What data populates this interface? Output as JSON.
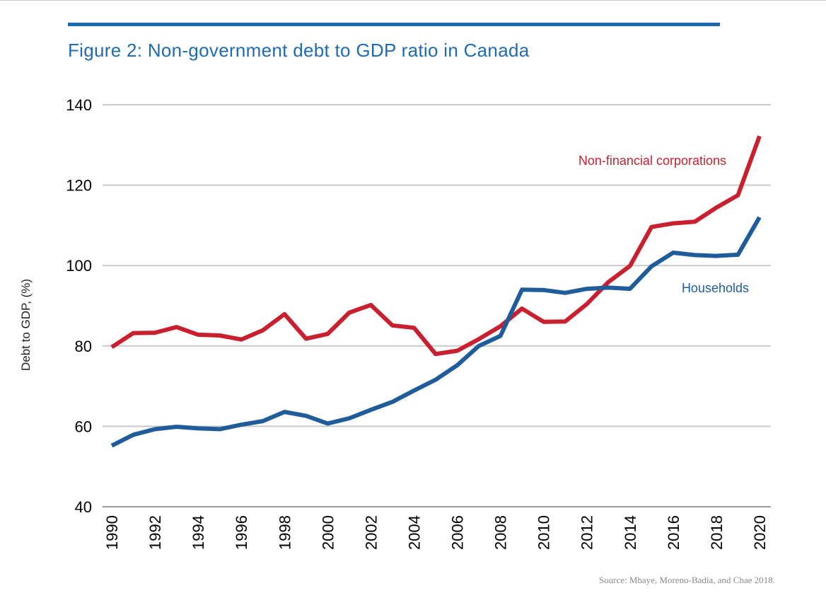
{
  "figure": {
    "title": "Figure 2: Non-government debt to GDP ratio in Canada",
    "source": "Source: Mbaye, Moreno-Badia, and Chae 2018."
  },
  "chart_data": {
    "type": "line",
    "title": "Figure 2: Non-government debt to GDP ratio in Canada",
    "xlabel": "",
    "ylabel": "Debt to GDP, (%)",
    "ylim": [
      40,
      140
    ],
    "xlim": [
      1990,
      2020
    ],
    "yticks": [
      40,
      60,
      80,
      100,
      120,
      140
    ],
    "xticks": [
      1990,
      1992,
      1994,
      1996,
      1998,
      2000,
      2002,
      2004,
      2006,
      2008,
      2010,
      2012,
      2014,
      2016,
      2018,
      2020
    ],
    "grid": "horizontal",
    "x": [
      1990,
      1991,
      1992,
      1993,
      1994,
      1995,
      1996,
      1997,
      1998,
      1999,
      2000,
      2001,
      2002,
      2003,
      2004,
      2005,
      2006,
      2007,
      2008,
      2009,
      2010,
      2011,
      2012,
      2013,
      2014,
      2015,
      2016,
      2017,
      2018,
      2019,
      2020
    ],
    "series": [
      {
        "name": "Non-financial corporations",
        "color": "#c8202f",
        "values": [
          79.7,
          83.2,
          83.3,
          84.7,
          82.8,
          82.6,
          81.6,
          83.9,
          87.9,
          81.8,
          83.0,
          88.3,
          90.2,
          85.1,
          84.5,
          78.0,
          78.8,
          81.7,
          84.9,
          89.3,
          86.0,
          86.1,
          90.4,
          95.9,
          99.9,
          109.6,
          110.5,
          110.9,
          114.4,
          117.5,
          132.2
        ]
      },
      {
        "name": "Households",
        "color": "#1f5c99",
        "values": [
          55.2,
          57.9,
          59.3,
          59.9,
          59.5,
          59.3,
          60.4,
          61.3,
          63.6,
          62.6,
          60.7,
          62.0,
          64.1,
          66.1,
          68.9,
          71.6,
          75.2,
          80.0,
          82.5,
          94.0,
          93.9,
          93.2,
          94.2,
          94.5,
          94.2,
          99.8,
          103.2,
          102.6,
          102.4,
          102.7,
          112.0
        ]
      }
    ]
  }
}
